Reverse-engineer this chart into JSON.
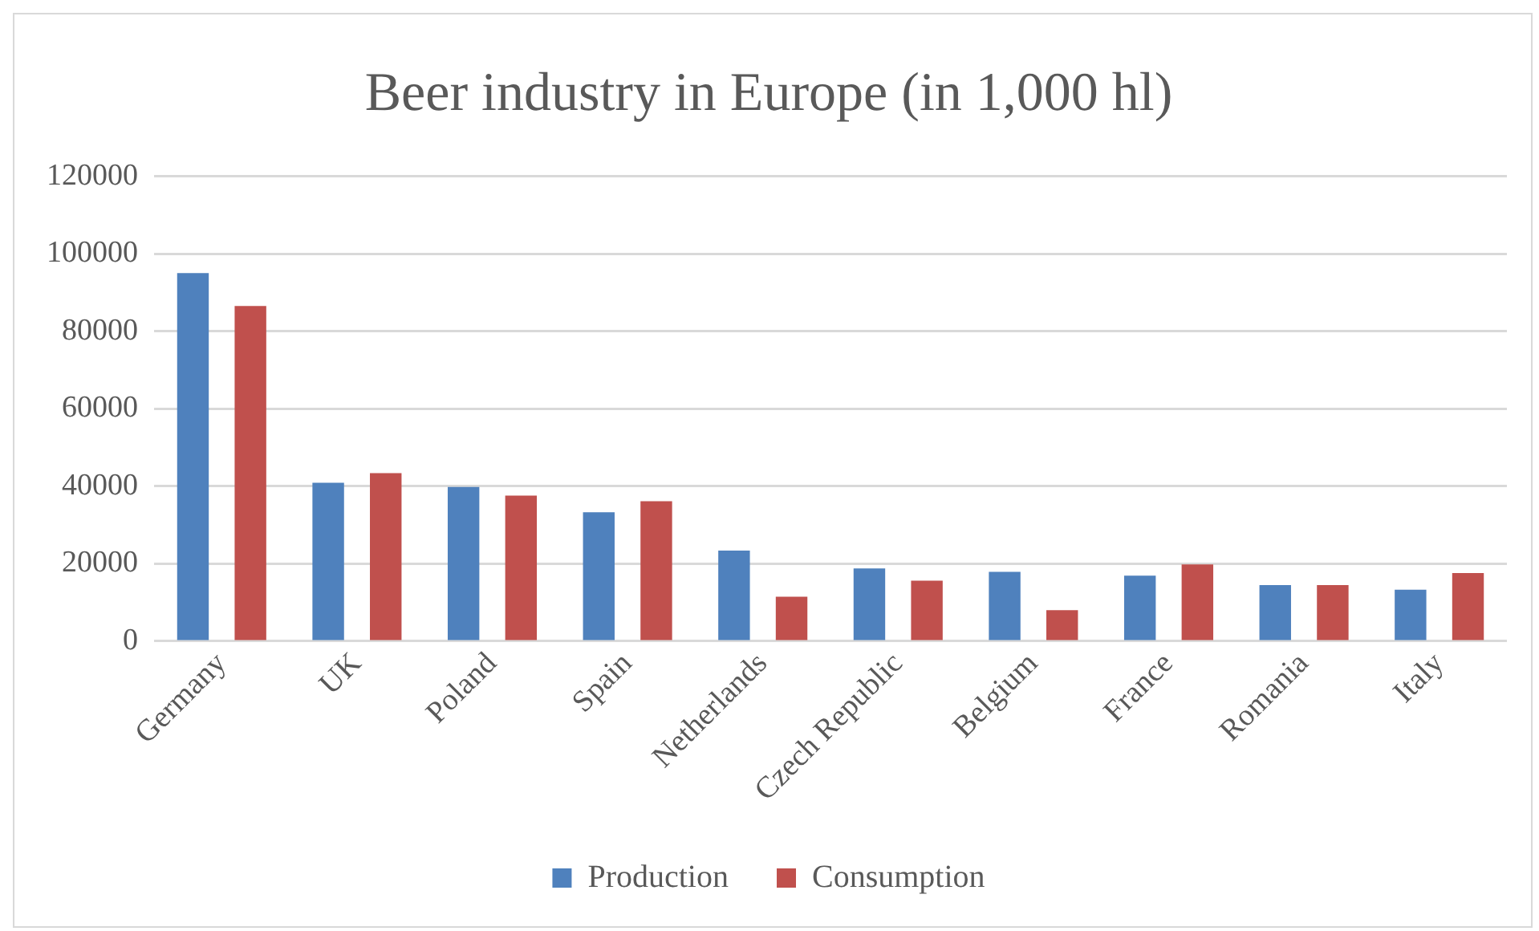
{
  "chart_data": {
    "type": "bar",
    "title": "Beer industry in Europe (in 1,000 hl)",
    "categories": [
      "Germany",
      "UK",
      "Poland",
      "Spain",
      "Netherlands",
      "Czech Republic",
      "Belgium",
      "France",
      "Romania",
      "Italy"
    ],
    "series": [
      {
        "name": "Production",
        "color": "#4f81bd",
        "values": [
          95000,
          40900,
          39800,
          33300,
          23400,
          18800,
          17900,
          16900,
          14500,
          13300
        ]
      },
      {
        "name": "Consumption",
        "color": "#c0504d",
        "values": [
          86500,
          43400,
          37600,
          36100,
          11500,
          15600,
          8000,
          19800,
          14500,
          17600
        ]
      }
    ],
    "ylim": [
      0,
      120000
    ],
    "yticks": [
      0,
      20000,
      40000,
      60000,
      80000,
      100000,
      120000
    ],
    "grid": "y",
    "legend": "bottom"
  }
}
